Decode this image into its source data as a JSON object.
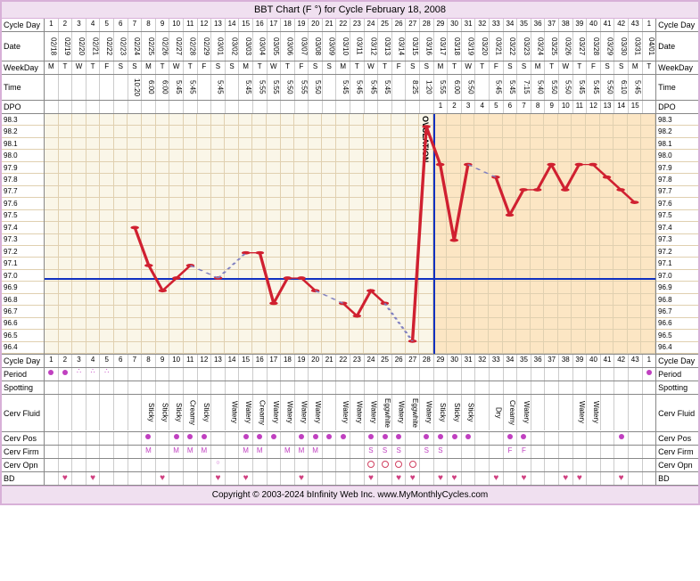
{
  "title": "BBT Chart (F °) for Cycle February 18, 2008",
  "labels": {
    "cycle_day": "Cycle Day",
    "date": "Date",
    "weekday": "WeekDay",
    "time": "Time",
    "dpo": "DPO",
    "period": "Period",
    "spotting": "Spotting",
    "cerv_fluid": "Cerv Fluid",
    "cerv_pos": "Cerv Pos",
    "cerv_firm": "Cerv Firm",
    "cerv_opn": "Cerv Opn",
    "bd": "BD"
  },
  "copyright": "Copyright © 2003-2024 bInfinity Web Inc.    www.MyMonthlyCycles.com",
  "cycle_days": [
    1,
    2,
    3,
    4,
    5,
    6,
    7,
    8,
    9,
    10,
    11,
    12,
    13,
    14,
    15,
    16,
    17,
    18,
    19,
    20,
    21,
    22,
    23,
    24,
    25,
    26,
    27,
    28,
    29,
    30,
    31,
    32,
    33,
    34,
    35,
    36,
    37,
    38,
    39,
    40,
    41,
    42,
    43,
    1
  ],
  "dates": [
    "02/18",
    "02/19",
    "02/20",
    "02/21",
    "02/22",
    "02/23",
    "02/24",
    "02/25",
    "02/26",
    "02/27",
    "02/28",
    "02/29",
    "03/01",
    "03/02",
    "03/03",
    "03/04",
    "03/05",
    "03/06",
    "03/07",
    "03/08",
    "03/09",
    "03/10",
    "03/11",
    "03/12",
    "03/13",
    "03/14",
    "03/15",
    "03/16",
    "03/17",
    "03/18",
    "03/19",
    "03/20",
    "03/21",
    "03/22",
    "03/23",
    "03/24",
    "03/25",
    "03/26",
    "03/27",
    "03/28",
    "03/29",
    "03/30",
    "03/31",
    "04/01"
  ],
  "weekdays": [
    "M",
    "T",
    "W",
    "T",
    "F",
    "S",
    "S",
    "M",
    "T",
    "W",
    "T",
    "F",
    "S",
    "S",
    "M",
    "T",
    "W",
    "T",
    "F",
    "S",
    "S",
    "M",
    "T",
    "W",
    "T",
    "F",
    "S",
    "S",
    "M",
    "T",
    "W",
    "T",
    "F",
    "S",
    "S",
    "M",
    "T",
    "W",
    "T",
    "F",
    "S",
    "S",
    "M",
    "T"
  ],
  "times": [
    "",
    "",
    "",
    "",
    "",
    "",
    "10:20",
    "6:00",
    "6:00",
    "5:45",
    "5:45",
    "",
    "5:45",
    "",
    "5:45",
    "5:55",
    "5:55",
    "5:50",
    "5:55",
    "5:50",
    "",
    "5:45",
    "5:45",
    "5:45",
    "5:45",
    "",
    "8:25",
    "1:20",
    "5:55",
    "6:00",
    "5:50",
    "",
    "5:45",
    "5:45",
    "7:15",
    "5:40",
    "5:50",
    "5:50",
    "5:45",
    "5:45",
    "5:50",
    "6:10",
    "5:45",
    ""
  ],
  "dpo": [
    "",
    "",
    "",
    "",
    "",
    "",
    "",
    "",
    "",
    "",
    "",
    "",
    "",
    "",
    "",
    "",
    "",
    "",
    "",
    "",
    "",
    "",
    "",
    "",
    "",
    "",
    "",
    "",
    "1",
    "2",
    "3",
    "4",
    "5",
    "6",
    "7",
    "8",
    "9",
    "10",
    "11",
    "12",
    "13",
    "14",
    "15",
    ""
  ],
  "temps": {
    "ylabels": [
      "98.3",
      "98.2",
      "98.1",
      "98.0",
      "97.9",
      "97.8",
      "97.7",
      "97.6",
      "97.5",
      "97.4",
      "97.3",
      "97.2",
      "97.1",
      "97.0",
      "96.9",
      "96.8",
      "96.7",
      "96.6",
      "96.5",
      "96.4"
    ],
    "ymin": 96.4,
    "ymax": 98.3,
    "coverline": 97.0,
    "ovulation_day_index": 27,
    "luteal_start_index": 28,
    "series": [
      null,
      null,
      null,
      null,
      null,
      null,
      97.4,
      97.1,
      96.9,
      97.0,
      97.1,
      null,
      97.0,
      null,
      97.2,
      97.2,
      96.8,
      97.0,
      97.0,
      96.9,
      null,
      96.8,
      96.7,
      96.9,
      96.8,
      null,
      96.5,
      98.2,
      97.9,
      97.3,
      97.9,
      null,
      97.8,
      97.5,
      97.7,
      97.7,
      97.9,
      97.7,
      97.9,
      97.9,
      97.8,
      97.7,
      97.6,
      null
    ],
    "line_color": "#d02030",
    "point_color": "#d02030",
    "dashed_color": "#8080c0",
    "ov_text": "OVULATION"
  },
  "period": [
    "solid",
    "solid",
    "dots",
    "dots",
    "dots",
    "",
    "",
    "",
    "",
    "",
    "",
    "",
    "",
    "",
    "",
    "",
    "",
    "",
    "",
    "",
    "",
    "",
    "",
    "",
    "",
    "",
    "",
    "",
    "",
    "",
    "",
    "",
    "",
    "",
    "",
    "",
    "",
    "",
    "",
    "",
    "",
    "",
    "",
    "solid"
  ],
  "cerv_fluid": [
    "",
    "",
    "",
    "",
    "",
    "",
    "",
    "Sticky",
    "Sticky",
    "Sticky",
    "Creamy",
    "Sticky",
    "",
    "Watery",
    "Watery",
    "Creamy",
    "Watery",
    "Watery",
    "Watery",
    "Watery",
    "",
    "Watery",
    "Watery",
    "Watery",
    "Eggwhite",
    "Watery",
    "Eggwhite",
    "Watery",
    "Sticky",
    "Sticky",
    "Sticky",
    "",
    "Dry",
    "Creamy",
    "Watery",
    "",
    "",
    "",
    "Watery",
    "Watery",
    "",
    "",
    "",
    ""
  ],
  "cerv_pos": [
    "",
    "",
    "",
    "",
    "",
    "",
    "",
    "1",
    "",
    "1",
    "1",
    "1",
    "",
    "",
    "1",
    "1",
    "1",
    "",
    "1",
    "1",
    "1",
    "1",
    "",
    "1",
    "1",
    "1",
    "",
    "1",
    "1",
    "1",
    "1",
    "",
    "",
    "1",
    "1",
    "",
    "",
    "",
    "",
    "",
    "",
    "1",
    "",
    ""
  ],
  "cerv_firm": [
    "",
    "",
    "",
    "",
    "",
    "",
    "",
    "M",
    "",
    "M",
    "M",
    "M",
    "",
    "",
    "M",
    "M",
    "",
    "M",
    "M",
    "M",
    "",
    "",
    "",
    "S",
    "S",
    "S",
    "",
    "S",
    "S",
    "",
    "",
    "",
    "",
    "F",
    "F",
    "",
    "",
    "",
    "",
    "",
    "",
    "",
    "",
    ""
  ],
  "cerv_opn": [
    "",
    "",
    "",
    "",
    "",
    "",
    "",
    "",
    "",
    "",
    "",
    "",
    "o",
    "",
    "",
    "",
    "",
    "",
    "",
    "",
    "",
    "",
    "",
    "O",
    "O",
    "O",
    "O",
    "",
    "",
    "",
    "",
    "",
    "",
    "",
    "",
    "",
    "",
    "",
    "",
    "",
    "",
    "",
    "",
    ""
  ],
  "bd": [
    "",
    "h",
    "",
    "h",
    "",
    "",
    "",
    "",
    "h",
    "",
    "",
    "",
    "h",
    "",
    "h",
    "",
    "",
    "",
    "h",
    "",
    "",
    "",
    "",
    "h",
    "",
    "h",
    "h",
    "",
    "h",
    "h",
    "",
    "",
    "h",
    "",
    "h",
    "",
    "",
    "h",
    "h",
    "",
    "",
    "h",
    "",
    ""
  ],
  "style": {
    "border": "#d8b0d8",
    "bg_chart": "#faf6e8",
    "grid": "#e0d0b0",
    "luteal": "rgba(255,200,130,0.35)",
    "coverline_color": "#1030c0"
  }
}
